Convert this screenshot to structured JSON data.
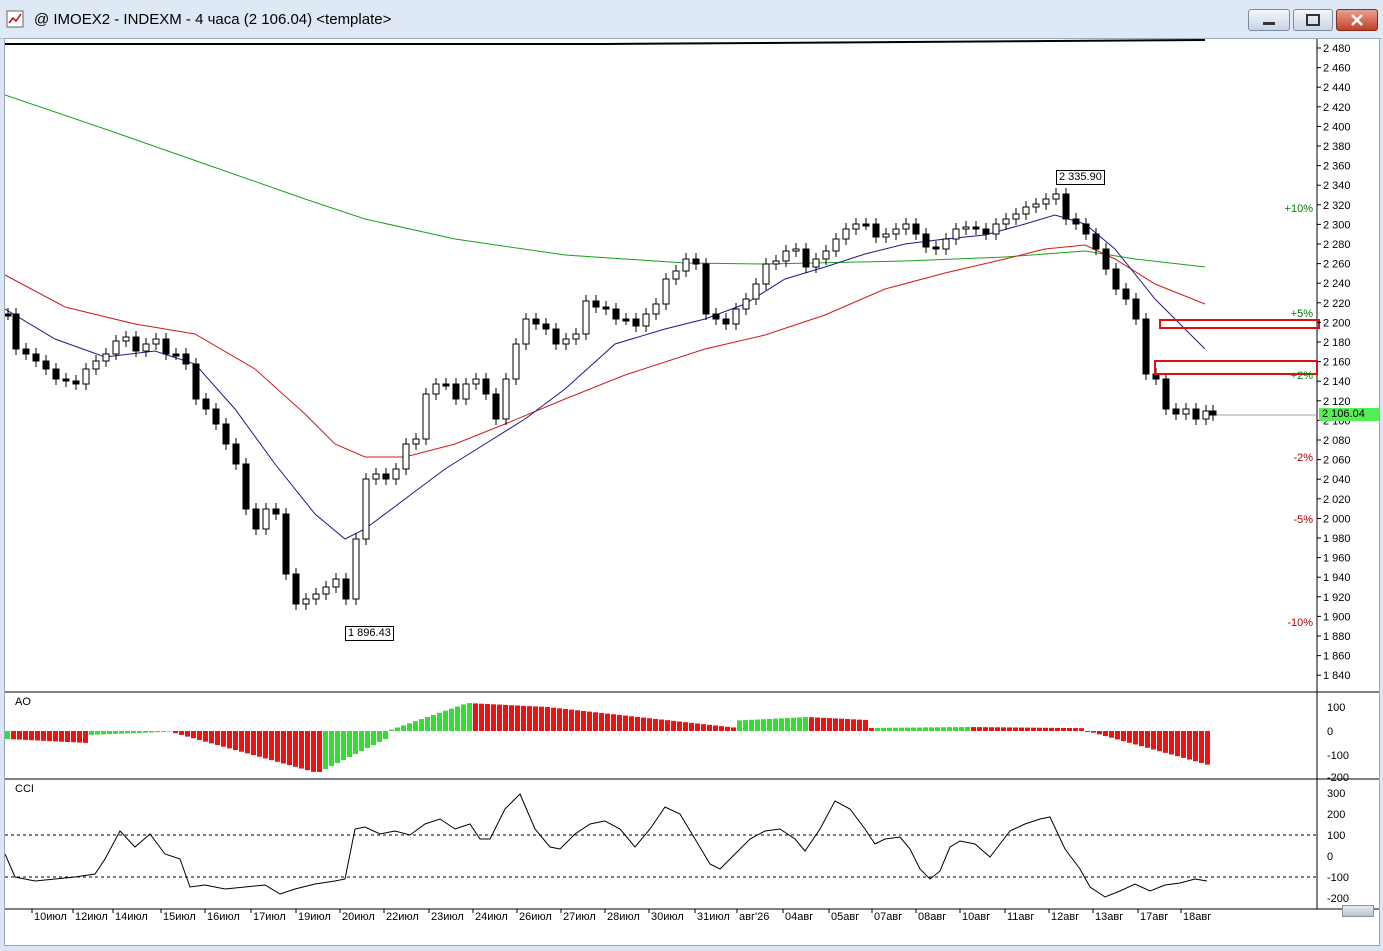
{
  "window": {
    "title": "@ IMOEX2 - INDEXM - 4 часа (2 106.04) <template>",
    "minimize_icon": "minimize-icon",
    "maximize_icon": "maximize-icon",
    "close_icon": "close-icon"
  },
  "panels": {
    "ao_label": "AO",
    "cci_label": "CCI"
  },
  "price_axis": [
    "2 480",
    "2 460",
    "2 440",
    "2 420",
    "2 400",
    "2 380",
    "2 360",
    "2 340",
    "2 320",
    "2 300",
    "2 280",
    "2 260",
    "2 240",
    "2 220",
    "2 200",
    "2 180",
    "2 160",
    "2 140",
    "2 120",
    "2 100",
    "2 080",
    "2 060",
    "2 040",
    "2 020",
    "2 000",
    "1 980",
    "1 960",
    "1 940",
    "1 920",
    "1 900",
    "1 880",
    "1 860",
    "1 840"
  ],
  "ao_axis": [
    "100",
    "0",
    "-100",
    "-200"
  ],
  "cci_axis": [
    "300",
    "200",
    "100",
    "0",
    "-100",
    "-200"
  ],
  "date_axis": [
    "10июл",
    "12июл",
    "14июл",
    "15июл",
    "16июл",
    "17июл",
    "19июл",
    "20июл",
    "22июл",
    "23июл",
    "24июл",
    "26июл",
    "27июл",
    "28июл",
    "30июл",
    "31июл",
    "авг'26",
    "04авг",
    "05авг",
    "07авг",
    "08авг",
    "10авг",
    "11авг",
    "12авг",
    "13авг",
    "17авг",
    "18авг"
  ],
  "annotations": {
    "high_label": "2 335.90",
    "low_label": "1 896.43",
    "current_price": "2 106.04"
  },
  "percent_levels": [
    {
      "text": "+10%",
      "color": "#008000"
    },
    {
      "text": "+5%",
      "color": "#008000"
    },
    {
      "text": "+2%",
      "color": "#008000"
    },
    {
      "text": "-2%",
      "color": "#b00000"
    },
    {
      "text": "-5%",
      "color": "#b00000"
    },
    {
      "text": "-10%",
      "color": "#b00000"
    }
  ],
  "colors": {
    "ma_long": "#1aa11a",
    "ma_mid": "#d21a1a",
    "ma_short": "#1a1a8c",
    "ao_up": "#33dd33",
    "ao_down": "#ee1111",
    "current_price_bg": "#55ee55",
    "zone_border": "#e01010"
  }
}
